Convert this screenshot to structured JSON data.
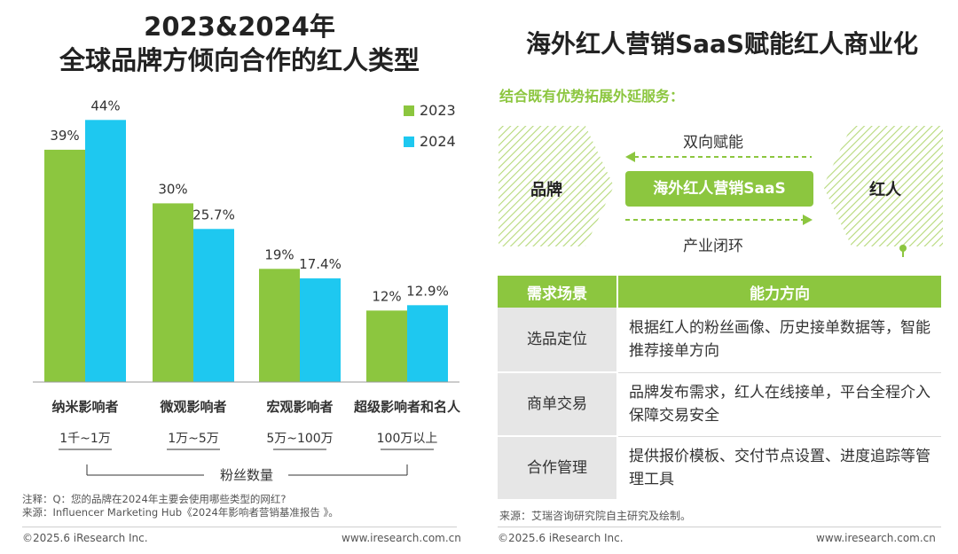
{
  "left_panel": {
    "title_line1": "2023&2024年",
    "title_line2": "全球品牌方倾向合作的红人类型",
    "note": "注释：Q：您的品牌在2024年主要会使用哪些类型的网红?",
    "source": "来源：Influencer Marketing Hub《2024年影响者营销基准报告 》。",
    "copyright": "©2025.6 iResearch Inc.",
    "website": "www.iresearch.com.cn"
  },
  "chart_data": {
    "type": "bar",
    "title": "2023&2024年 全球品牌方倾向合作的红人类型",
    "categories": [
      "纳米影响者",
      "微观影响者",
      "宏观影响者",
      "超级影响者和名人"
    ],
    "sub_categories": [
      "1千~1万",
      "1万~5万",
      "5万~100万",
      "100万以上"
    ],
    "xlabel": "粉丝数量",
    "ylabel": "",
    "ylim": [
      0,
      50
    ],
    "grid": false,
    "legend_position": "top-right",
    "series": [
      {
        "name": "2023",
        "values": [
          39,
          30,
          19,
          12
        ],
        "labels": [
          "39%",
          "30%",
          "19%",
          "12%"
        ],
        "color": "#8cc63f"
      },
      {
        "name": "2024",
        "values": [
          44,
          25.7,
          17.4,
          12.9
        ],
        "labels": [
          "44%",
          "25.7%",
          "17.4%",
          "12.9%"
        ],
        "color": "#1ec8f0"
      }
    ]
  },
  "right_panel": {
    "title": "海外红人营销SaaS赋能红人商业化",
    "subtitle": "结合既有优势拓展外延服务：",
    "left_node": "品牌",
    "right_node": "红人",
    "center_node": "海外红人营销SaaS",
    "top_flow": "双向赋能",
    "bottom_flow": "产业闭环",
    "table": {
      "headers": [
        "需求场景",
        "能力方向"
      ],
      "rows": [
        {
          "scene": "选品定位",
          "ability": "根据红人的粉丝画像、历史接单数据等，智能推荐接单方向"
        },
        {
          "scene": "商单交易",
          "ability": "品牌发布需求，红人在线接单，平台全程介入保障交易安全"
        },
        {
          "scene": "合作管理",
          "ability": "提供报价模板、交付节点设置、进度追踪等管理工具"
        }
      ]
    },
    "source": "来源：艾瑞咨询研究院自主研究及绘制。",
    "copyright": "©2025.6 iResearch Inc.",
    "website": "www.iresearch.com.cn"
  },
  "colors": {
    "green": "#8cc63f",
    "blue": "#1ec8f0",
    "gray_cell": "#e6e6e6"
  }
}
